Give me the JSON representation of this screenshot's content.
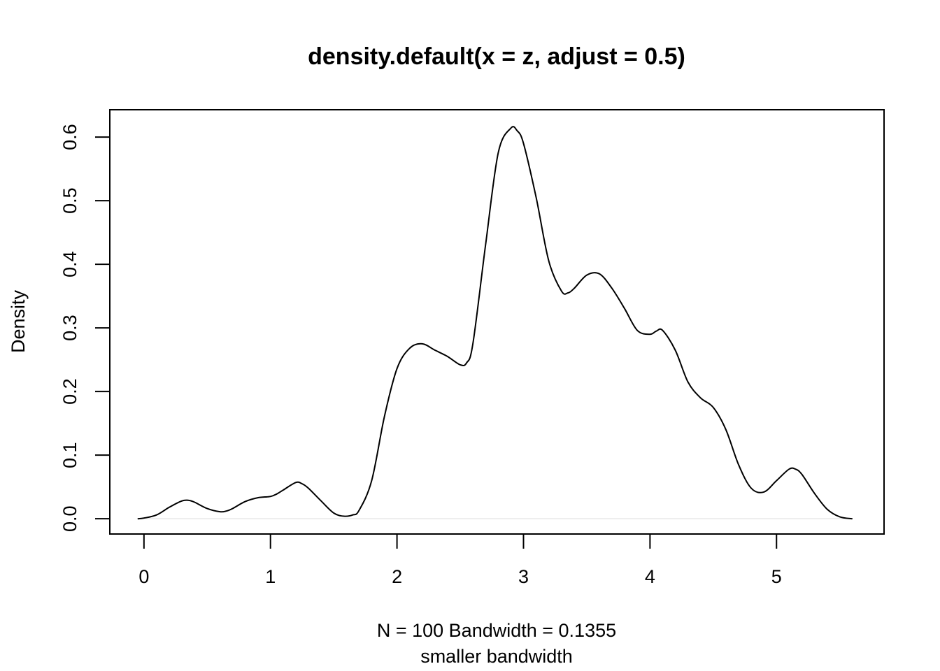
{
  "chart_data": {
    "type": "line",
    "title": "density.default(x = z, adjust = 0.5)",
    "xlabel": "N = 100   Bandwidth = 0.1355",
    "subtitle": "smaller bandwidth",
    "ylabel": "Density",
    "xlim": [
      -0.27,
      5.85
    ],
    "ylim": [
      -0.024,
      0.643
    ],
    "x_ticks": [
      0,
      1,
      2,
      3,
      4,
      5
    ],
    "x_tick_labels": [
      "0",
      "1",
      "2",
      "3",
      "4",
      "5"
    ],
    "y_ticks": [
      0.0,
      0.1,
      0.2,
      0.3,
      0.4,
      0.5,
      0.6
    ],
    "y_tick_labels": [
      "0.0",
      "0.1",
      "0.2",
      "0.3",
      "0.4",
      "0.5",
      "0.6"
    ],
    "grid": false,
    "zero_line": true,
    "colors": {
      "line": "#000000",
      "zero_line": "#e8e8e8",
      "frame": "#000000"
    },
    "series": [
      {
        "x": [
          -0.05,
          0.0,
          0.1,
          0.2,
          0.3,
          0.35,
          0.4,
          0.5,
          0.6,
          0.65,
          0.7,
          0.8,
          0.9,
          1.0,
          1.05,
          1.1,
          1.2,
          1.25,
          1.3,
          1.4,
          1.5,
          1.58,
          1.65,
          1.7,
          1.8,
          1.9,
          2.0,
          2.1,
          2.2,
          2.3,
          2.4,
          2.5,
          2.55,
          2.6,
          2.7,
          2.8,
          2.9,
          2.95,
          3.0,
          3.1,
          3.2,
          3.3,
          3.35,
          3.4,
          3.5,
          3.6,
          3.7,
          3.8,
          3.9,
          4.0,
          4.05,
          4.1,
          4.2,
          4.3,
          4.4,
          4.5,
          4.6,
          4.7,
          4.8,
          4.9,
          5.0,
          5.1,
          5.15,
          5.2,
          5.3,
          5.4,
          5.5,
          5.6
        ],
        "y": [
          0.0,
          0.001,
          0.006,
          0.018,
          0.028,
          0.029,
          0.026,
          0.016,
          0.011,
          0.012,
          0.016,
          0.027,
          0.033,
          0.035,
          0.039,
          0.045,
          0.057,
          0.055,
          0.048,
          0.028,
          0.009,
          0.004,
          0.006,
          0.013,
          0.06,
          0.16,
          0.236,
          0.268,
          0.275,
          0.265,
          0.255,
          0.242,
          0.245,
          0.275,
          0.43,
          0.575,
          0.614,
          0.61,
          0.59,
          0.505,
          0.405,
          0.358,
          0.355,
          0.362,
          0.383,
          0.385,
          0.362,
          0.33,
          0.296,
          0.29,
          0.295,
          0.296,
          0.265,
          0.215,
          0.19,
          0.175,
          0.14,
          0.085,
          0.048,
          0.042,
          0.06,
          0.078,
          0.078,
          0.07,
          0.04,
          0.015,
          0.003,
          0.0
        ]
      }
    ]
  }
}
